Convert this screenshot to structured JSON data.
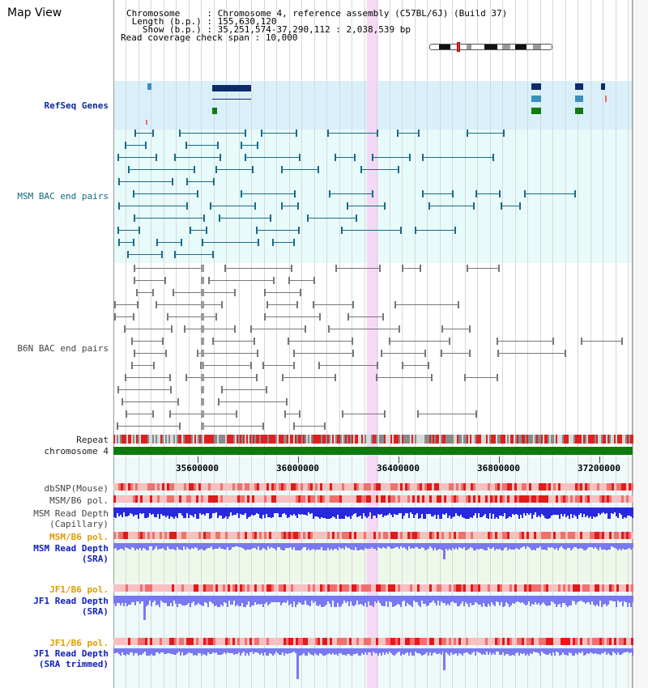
{
  "page": {
    "title": "Map View"
  },
  "header": {
    "chromosome_key": "Chromosome     : ",
    "chromosome_value": "Chromosome 4, reference assembly (C57BL/6J) (Build 37)",
    "length_key": " Length (b.p.) : ",
    "length_value": "155,630,120",
    "show_key": "   Show (b.p.) : ",
    "show_value": "35,251,574-37,290,112 : 2,038,539 bp",
    "coverage_key": "Read coverage check span : ",
    "coverage_value": "10,000"
  },
  "labels": {
    "refseq": "RefSeq Genes",
    "msm_bac": "MSM BAC end pairs",
    "b6n_bac": "B6N BAC end pairs",
    "repeat": "Repeat",
    "chromosome": "chromosome 4",
    "dbsnp": "dbSNP(Mouse)",
    "msm_b6_pol_1": "MSM/B6 pol.",
    "msm_read_depth_cap_1": "MSM Read Depth",
    "msm_read_depth_cap_2": "(Capillary)",
    "msm_b6_pol_2": "MSM/B6 pol.",
    "msm_read_depth_sra_1": "MSM Read Depth",
    "msm_read_depth_sra_2": "(SRA)",
    "jf1_b6_pol_1": "JF1/B6 pol.",
    "jf1_read_depth_sra_1": "JF1 Read Depth",
    "jf1_read_depth_sra_2": "(SRA)",
    "jf1_b6_pol_2": "JF1/B6 pol.",
    "jf1_read_depth_trim_1": "JF1 Read Depth",
    "jf1_read_depth_trim_2": "(SRA trimmed)"
  },
  "axis": {
    "ticks": [
      "35600000",
      "36000000",
      "36400000",
      "36800000",
      "37200000"
    ]
  },
  "colors": {
    "refseq_band": "#d9f0fb",
    "bac_band": "#e8fbfb",
    "gene_navy": "#0d2a6b",
    "gene_blue": "#3a8fc0",
    "gene_green": "#137a13",
    "msm_pair": "#1a6a8a",
    "b6n_pair": "#777777",
    "repeat_red": "#e02020",
    "chromosome_green": "#0e7a0e",
    "depth_blue": "#2828e0",
    "depth_light": "#7878f0",
    "highlight": "#f6d2f4"
  }
}
